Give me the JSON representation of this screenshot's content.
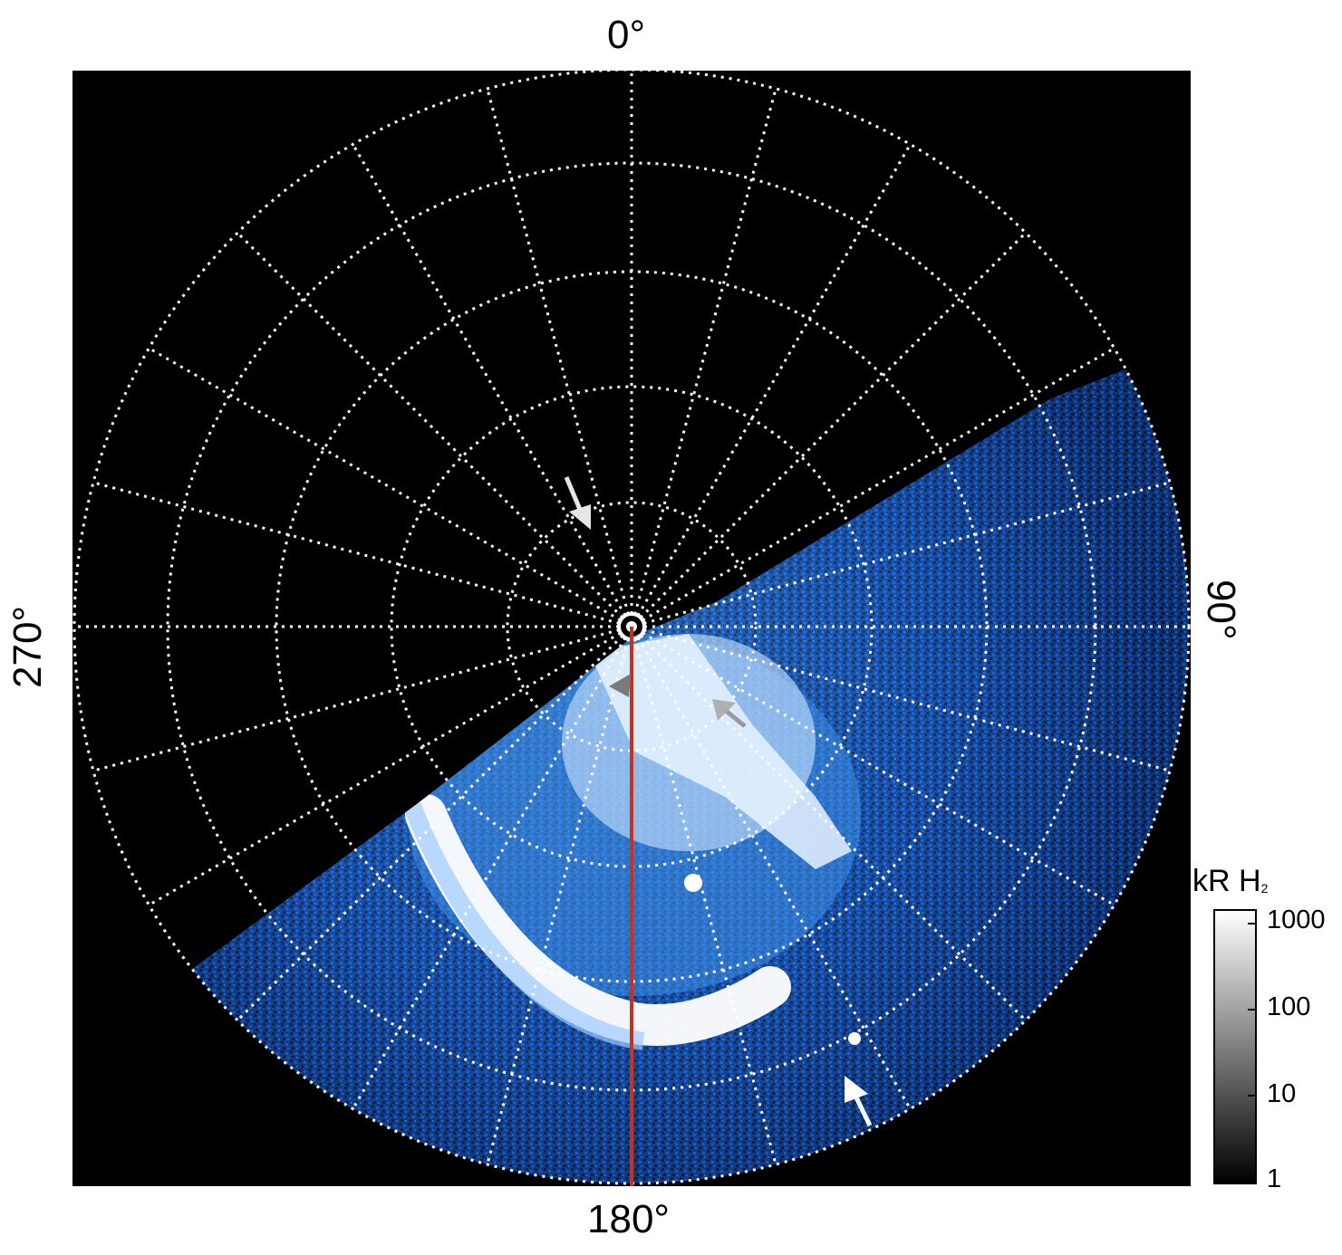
{
  "labels": {
    "top": "0°",
    "bottom": "180°",
    "left": "270°",
    "right": "90°"
  },
  "colorbar": {
    "title": "kR H",
    "title_subscript": "2",
    "ticks": [
      "1000",
      "100",
      "10",
      "1"
    ],
    "colors": [
      "#000000",
      "#ffffff"
    ]
  },
  "colors": {
    "background": "#000000",
    "aurora": "#1f6fd8",
    "meridian_line": "#c8321a",
    "grid": "#ffffff"
  }
}
